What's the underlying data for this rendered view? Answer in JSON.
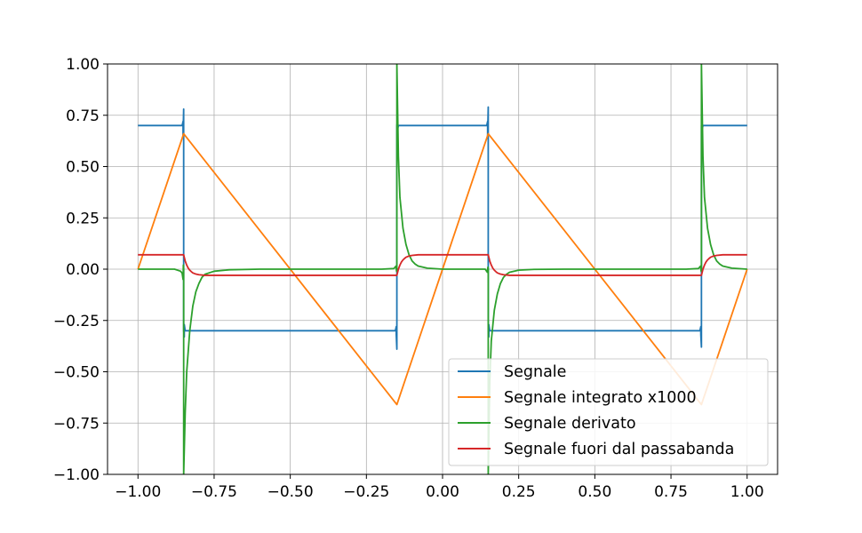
{
  "chart_data": {
    "type": "line",
    "title": "",
    "xlabel": "",
    "ylabel": "",
    "xlim": [
      -1.1,
      1.1
    ],
    "ylim": [
      -1.0,
      1.0
    ],
    "grid": true,
    "legend_position": "lower-right",
    "x_ticks": [
      -1.0,
      -0.75,
      -0.5,
      -0.25,
      0.0,
      0.25,
      0.5,
      0.75,
      1.0
    ],
    "x_tick_labels": [
      "−1.00",
      "−0.75",
      "−0.50",
      "−0.25",
      "0.00",
      "0.25",
      "0.50",
      "0.75",
      "1.00"
    ],
    "y_ticks": [
      -1.0,
      -0.75,
      -0.5,
      -0.25,
      0.0,
      0.25,
      0.5,
      0.75,
      1.0
    ],
    "y_tick_labels": [
      "−1.00",
      "−0.75",
      "−0.50",
      "−0.25",
      "0.00",
      "0.25",
      "0.50",
      "0.75",
      "1.00"
    ],
    "series": [
      {
        "name": "Segnale",
        "color": "#1f77b4",
        "x": [
          -1.0,
          -0.855,
          -0.852,
          -0.852,
          -0.85,
          -0.85,
          -0.848,
          -0.848,
          -0.845,
          -0.155,
          -0.152,
          -0.152,
          -0.15,
          -0.15,
          -0.148,
          -0.148,
          -0.145,
          0.145,
          0.148,
          0.148,
          0.15,
          0.15,
          0.152,
          0.152,
          0.155,
          0.845,
          0.848,
          0.848,
          0.85,
          0.85,
          0.852,
          0.852,
          0.855,
          1.0
        ],
        "y": [
          0.7,
          0.7,
          0.72,
          0.65,
          0.78,
          -0.3,
          -0.33,
          -0.27,
          -0.3,
          -0.3,
          -0.28,
          -0.32,
          -0.39,
          0.7,
          0.72,
          0.68,
          0.7,
          0.7,
          0.72,
          0.65,
          0.79,
          -0.3,
          -0.33,
          -0.27,
          -0.3,
          -0.3,
          -0.28,
          -0.32,
          -0.38,
          0.7,
          0.72,
          0.68,
          0.7,
          0.7
        ]
      },
      {
        "name": "Segnale integrato x1000",
        "color": "#ff7f0e",
        "x": [
          -1.0,
          -0.85,
          -0.15,
          0.15,
          0.85,
          1.0
        ],
        "y": [
          0.0,
          0.66,
          -0.66,
          0.66,
          -0.66,
          0.0
        ]
      },
      {
        "name": "Segnale derivato",
        "color": "#2ca02c",
        "x": [
          -1.0,
          -0.88,
          -0.86,
          -0.855,
          -0.852,
          -0.851,
          -0.85,
          -0.85,
          -0.845,
          -0.84,
          -0.83,
          -0.82,
          -0.81,
          -0.8,
          -0.79,
          -0.78,
          -0.75,
          -0.7,
          -0.6,
          -0.2,
          -0.16,
          -0.153,
          -0.151,
          -0.15,
          -0.15,
          -0.148,
          -0.145,
          -0.14,
          -0.13,
          -0.12,
          -0.11,
          -0.1,
          -0.09,
          -0.08,
          -0.05,
          0.0,
          0.1,
          0.14,
          0.147,
          0.149,
          0.15,
          0.15,
          0.155,
          0.16,
          0.17,
          0.18,
          0.19,
          0.2,
          0.21,
          0.22,
          0.25,
          0.3,
          0.4,
          0.8,
          0.84,
          0.847,
          0.849,
          0.85,
          0.85,
          0.852,
          0.855,
          0.86,
          0.87,
          0.88,
          0.89,
          0.9,
          0.91,
          0.92,
          0.95,
          1.0
        ],
        "y": [
          0.0,
          0.0,
          -0.01,
          -0.02,
          -0.05,
          0.02,
          0.0,
          -1.0,
          -0.7,
          -0.5,
          -0.3,
          -0.18,
          -0.11,
          -0.07,
          -0.04,
          -0.025,
          -0.01,
          -0.003,
          0.0,
          0.0,
          0.003,
          0.015,
          -0.01,
          0.0,
          1.0,
          0.82,
          0.55,
          0.35,
          0.2,
          0.12,
          0.07,
          0.04,
          0.025,
          0.015,
          0.005,
          0.0,
          0.0,
          0.0,
          -0.015,
          0.01,
          0.0,
          -1.0,
          -0.55,
          -0.35,
          -0.2,
          -0.12,
          -0.07,
          -0.04,
          -0.025,
          -0.015,
          -0.005,
          -0.001,
          0.0,
          0.0,
          0.003,
          0.015,
          -0.01,
          0.0,
          1.0,
          0.82,
          0.55,
          0.35,
          0.2,
          0.12,
          0.07,
          0.04,
          0.025,
          0.015,
          0.005,
          0.0
        ]
      },
      {
        "name": "Segnale fuori dal passabanda",
        "color": "#d62728",
        "x": [
          -1.0,
          -0.85,
          -0.845,
          -0.84,
          -0.835,
          -0.83,
          -0.825,
          -0.82,
          -0.81,
          -0.8,
          -0.78,
          -0.15,
          -0.145,
          -0.14,
          -0.135,
          -0.13,
          -0.125,
          -0.12,
          -0.11,
          -0.1,
          -0.08,
          0.15,
          0.155,
          0.16,
          0.165,
          0.17,
          0.175,
          0.18,
          0.19,
          0.2,
          0.22,
          0.85,
          0.855,
          0.86,
          0.865,
          0.87,
          0.875,
          0.88,
          0.89,
          0.9,
          0.92,
          1.0
        ],
        "y": [
          0.07,
          0.07,
          0.04,
          0.02,
          0.005,
          -0.005,
          -0.012,
          -0.018,
          -0.024,
          -0.027,
          -0.03,
          -0.03,
          0.0,
          0.02,
          0.035,
          0.045,
          0.052,
          0.058,
          0.064,
          0.067,
          0.07,
          0.07,
          0.04,
          0.02,
          0.005,
          -0.005,
          -0.012,
          -0.018,
          -0.024,
          -0.027,
          -0.03,
          -0.03,
          0.0,
          0.02,
          0.035,
          0.045,
          0.052,
          0.058,
          0.064,
          0.067,
          0.07,
          0.07
        ]
      }
    ]
  }
}
